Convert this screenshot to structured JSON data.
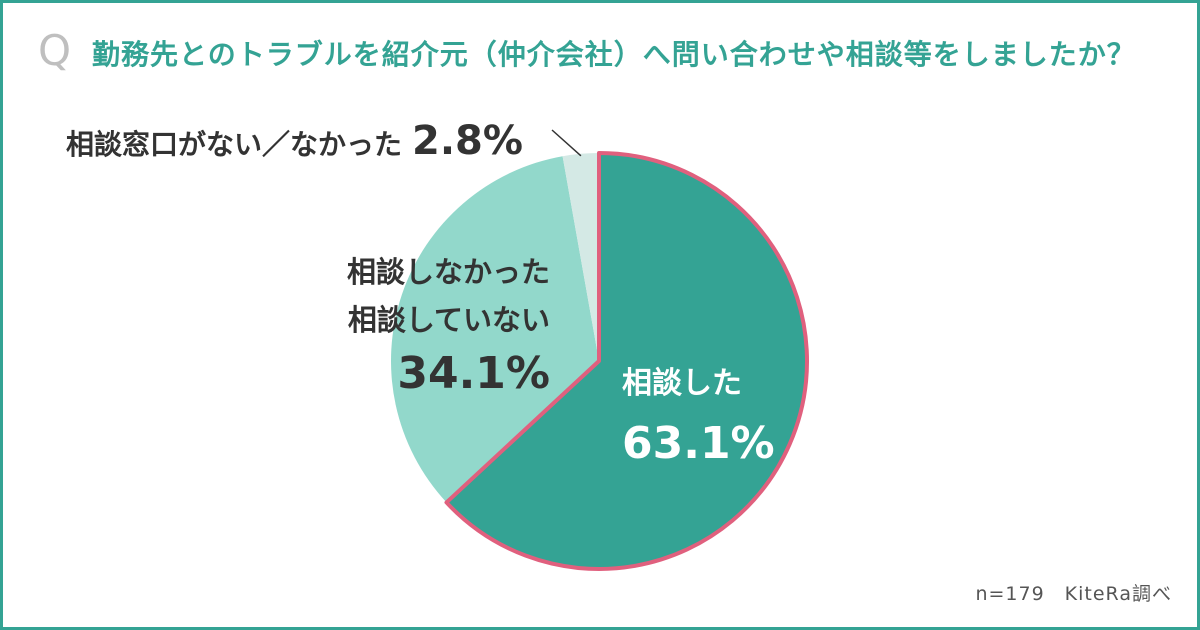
{
  "question": {
    "mark": "Q",
    "text": "勤務先とのトラブルを紹介元（仲介会社）へ問い合わせや相談等をしましたか？"
  },
  "colors": {
    "frame": "#34a394",
    "title": "#34a394",
    "highlight_border": "#e0607e"
  },
  "chart_data": {
    "type": "pie",
    "start_angle_deg": 0,
    "direction": "clockwise",
    "slices": [
      {
        "label": "相談した",
        "value": 63.1,
        "value_text": "63.1%",
        "color": "#34a394",
        "highlight": true
      },
      {
        "label_lines": [
          "相談しなかった",
          "相談していない"
        ],
        "value": 34.1,
        "value_text": "34.1%",
        "color": "#92d8cb",
        "highlight": false
      },
      {
        "label": "相談窓口がない／なかった",
        "value": 2.8,
        "value_text": "2.8%",
        "color": "#d4e9e5",
        "highlight": false
      }
    ]
  },
  "source": "n=179　KiteRa調べ"
}
